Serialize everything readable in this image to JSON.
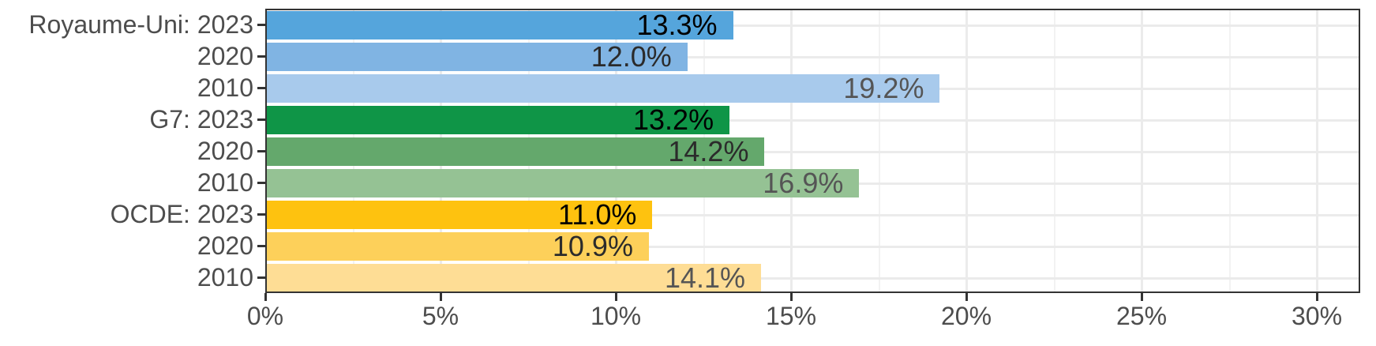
{
  "chart_data": {
    "type": "bar",
    "orientation": "horizontal",
    "title": "",
    "xlabel": "",
    "ylabel": "",
    "xlim": [
      0,
      31.2
    ],
    "x_ticks": [
      "0%",
      "5%",
      "10%",
      "15%",
      "20%",
      "25%",
      "30%"
    ],
    "x_tick_values": [
      0,
      5,
      10,
      15,
      20,
      25,
      30
    ],
    "grid": true,
    "legend": null,
    "categories": [
      "Royaume-Uni: 2023",
      "2020",
      "2010",
      "G7: 2023",
      "2020",
      "2010",
      "OCDE: 2023",
      "2020",
      "2010"
    ],
    "series": [
      {
        "name": "Royaume-Uni",
        "years": [
          "2023",
          "2020",
          "2010"
        ],
        "values": [
          13.3,
          12.0,
          19.2
        ],
        "labels": [
          "13.3%",
          "12.0%",
          "19.2%"
        ],
        "colors": [
          "#55A5DC",
          "#80B4E3",
          "#A8CAEC"
        ]
      },
      {
        "name": "G7",
        "years": [
          "2023",
          "2020",
          "2010"
        ],
        "values": [
          13.2,
          14.2,
          16.9
        ],
        "labels": [
          "13.2%",
          "14.2%",
          "16.9%"
        ],
        "colors": [
          "#0F9547",
          "#64A86C",
          "#95C294"
        ]
      },
      {
        "name": "OCDE",
        "years": [
          "2023",
          "2020",
          "2010"
        ],
        "values": [
          11.0,
          10.9,
          14.1
        ],
        "labels": [
          "11.0%",
          "10.9%",
          "14.1%"
        ],
        "colors": [
          "#FEC20F",
          "#FDD05A",
          "#FEDD95"
        ]
      }
    ],
    "rows": [
      {
        "label": "Royaume-Uni: 2023",
        "value": 13.3,
        "text": "13.3%",
        "color": "#55A5DC",
        "text_color": "#000000"
      },
      {
        "label": "2020",
        "value": 12.0,
        "text": "12.0%",
        "color": "#80B4E3",
        "text_color": "#2b2b2b"
      },
      {
        "label": "2010",
        "value": 19.2,
        "text": "19.2%",
        "color": "#A8CAEC",
        "text_color": "#555555"
      },
      {
        "label": "G7: 2023",
        "value": 13.2,
        "text": "13.2%",
        "color": "#0F9547",
        "text_color": "#000000"
      },
      {
        "label": "2020",
        "value": 14.2,
        "text": "14.2%",
        "color": "#64A86C",
        "text_color": "#2b2b2b"
      },
      {
        "label": "2010",
        "value": 16.9,
        "text": "16.9%",
        "color": "#95C294",
        "text_color": "#555555"
      },
      {
        "label": "OCDE: 2023",
        "value": 11.0,
        "text": "11.0%",
        "color": "#FEC20F",
        "text_color": "#000000"
      },
      {
        "label": "2020",
        "value": 10.9,
        "text": "10.9%",
        "color": "#FDD05A",
        "text_color": "#2b2b2b"
      },
      {
        "label": "2010",
        "value": 14.1,
        "text": "14.1%",
        "color": "#FEDD95",
        "text_color": "#555555"
      }
    ]
  }
}
